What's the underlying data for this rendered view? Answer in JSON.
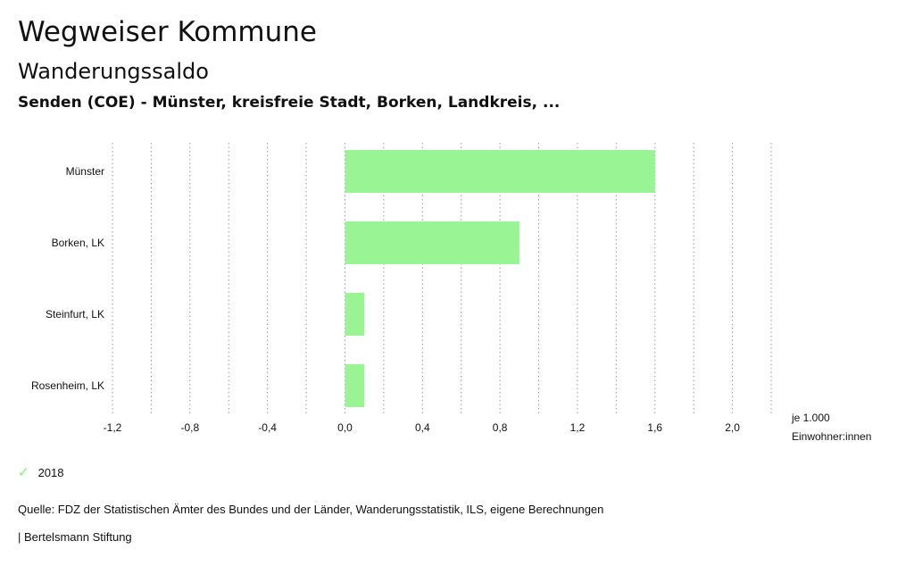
{
  "header": {
    "title": "Wegweiser Kommune",
    "subtitle": "Wanderungssaldo",
    "context": "Senden (COE) - Münster, kreisfreie Stadt, Borken, Landkreis, ..."
  },
  "chart_data": {
    "type": "bar",
    "orientation": "horizontal",
    "categories": [
      "Münster",
      "Borken, LK",
      "Steinfurt, LK",
      "Rosenheim, LK"
    ],
    "series": [
      {
        "name": "2018",
        "values": [
          1.6,
          0.9,
          0.1,
          0.1
        ],
        "color": "#99f593"
      }
    ],
    "xlim": [
      -1.2,
      2.2
    ],
    "xticks": [
      -1.2,
      -0.8,
      -0.4,
      0.0,
      0.4,
      0.8,
      1.2,
      1.6,
      2.0
    ],
    "xtick_labels": [
      "-1,2",
      "-0,8",
      "-0,4",
      "0,0",
      "0,4",
      "0,8",
      "1,2",
      "1,6",
      "2,0"
    ],
    "unit_label": [
      "je 1.000",
      "Einwohner:innen"
    ],
    "grid": "vertical-dotted",
    "legend_position": "bottom-left"
  },
  "legend": {
    "label": "2018",
    "icon": "check-icon"
  },
  "footer": {
    "source": "Quelle: FDZ der Statistischen Ämter des Bundes und der Länder, Wanderungsstatistik, ILS, eigene Berechnungen",
    "publisher": "| Bertelsmann Stiftung"
  }
}
